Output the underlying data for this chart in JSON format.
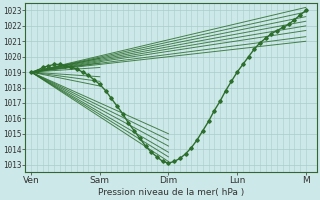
{
  "xlabel": "Pression niveau de la mer( hPa )",
  "background_color": "#cce8e8",
  "grid_color": "#aacccc",
  "line_color": "#2d6e2d",
  "ylim": [
    1012.5,
    1023.5
  ],
  "yticks": [
    1013,
    1014,
    1015,
    1016,
    1017,
    1018,
    1019,
    1020,
    1021,
    1022,
    1023
  ],
  "x_day_labels": [
    "Ven",
    "Sam",
    "Dim",
    "Lun",
    "M"
  ],
  "x_day_positions": [
    0,
    24,
    48,
    72,
    96
  ],
  "xlim": [
    -2,
    100
  ],
  "straight_lines": [
    {
      "x": [
        0,
        96
      ],
      "y": [
        1019.0,
        1023.2
      ]
    },
    {
      "x": [
        0,
        96
      ],
      "y": [
        1019.0,
        1022.9
      ]
    },
    {
      "x": [
        0,
        96
      ],
      "y": [
        1019.0,
        1022.6
      ]
    },
    {
      "x": [
        0,
        96
      ],
      "y": [
        1019.0,
        1022.3
      ]
    },
    {
      "x": [
        0,
        96
      ],
      "y": [
        1019.0,
        1022.0
      ]
    },
    {
      "x": [
        0,
        96
      ],
      "y": [
        1019.0,
        1021.7
      ]
    },
    {
      "x": [
        0,
        96
      ],
      "y": [
        1019.0,
        1021.3
      ]
    },
    {
      "x": [
        0,
        96
      ],
      "y": [
        1019.0,
        1021.0
      ]
    },
    {
      "x": [
        0,
        24
      ],
      "y": [
        1019.0,
        1019.9
      ]
    },
    {
      "x": [
        0,
        24
      ],
      "y": [
        1019.0,
        1019.6
      ]
    },
    {
      "x": [
        0,
        24
      ],
      "y": [
        1019.0,
        1019.3
      ]
    },
    {
      "x": [
        0,
        24
      ],
      "y": [
        1019.0,
        1018.7
      ]
    },
    {
      "x": [
        0,
        24
      ],
      "y": [
        1019.0,
        1018.4
      ]
    },
    {
      "x": [
        0,
        24
      ],
      "y": [
        1019.0,
        1018.1
      ]
    },
    {
      "x": [
        0,
        48
      ],
      "y": [
        1019.0,
        1013.2
      ]
    },
    {
      "x": [
        0,
        48
      ],
      "y": [
        1019.0,
        1013.5
      ]
    },
    {
      "x": [
        0,
        48
      ],
      "y": [
        1019.0,
        1013.8
      ]
    },
    {
      "x": [
        0,
        48
      ],
      "y": [
        1019.0,
        1014.2
      ]
    },
    {
      "x": [
        0,
        48
      ],
      "y": [
        1019.0,
        1014.6
      ]
    },
    {
      "x": [
        0,
        48
      ],
      "y": [
        1019.0,
        1015.0
      ]
    }
  ],
  "detailed_x": [
    0,
    2,
    4,
    6,
    8,
    10,
    12,
    14,
    16,
    18,
    20,
    22,
    24,
    26,
    28,
    30,
    32,
    34,
    36,
    38,
    40,
    42,
    44,
    46,
    48,
    50,
    52,
    54,
    56,
    58,
    60,
    62,
    64,
    66,
    68,
    70,
    72,
    74,
    76,
    78,
    80,
    82,
    84,
    86,
    88,
    90,
    92,
    94,
    96
  ],
  "detailed_y": [
    1019.0,
    1019.1,
    1019.3,
    1019.4,
    1019.5,
    1019.5,
    1019.4,
    1019.3,
    1019.2,
    1019.0,
    1018.8,
    1018.5,
    1018.2,
    1017.8,
    1017.3,
    1016.8,
    1016.3,
    1015.7,
    1015.2,
    1014.7,
    1014.2,
    1013.8,
    1013.5,
    1013.2,
    1013.1,
    1013.2,
    1013.4,
    1013.7,
    1014.1,
    1014.6,
    1015.2,
    1015.8,
    1016.5,
    1017.1,
    1017.8,
    1018.4,
    1019.0,
    1019.5,
    1020.0,
    1020.5,
    1020.9,
    1021.2,
    1021.5,
    1021.7,
    1021.9,
    1022.1,
    1022.4,
    1022.7,
    1023.0
  ]
}
